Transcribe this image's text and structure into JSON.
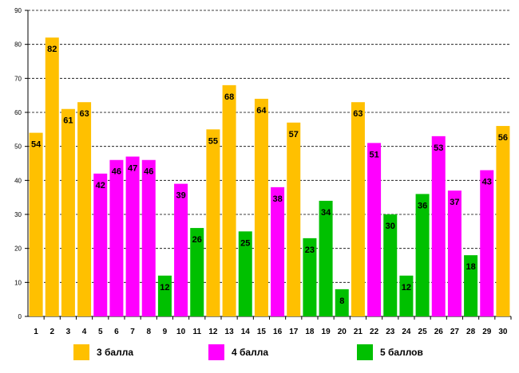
{
  "chart_data": {
    "type": "bar",
    "title": "",
    "xlabel": "",
    "ylabel": "",
    "ylim": [
      0,
      90
    ],
    "yticks": [
      0,
      10,
      20,
      30,
      40,
      50,
      60,
      70,
      80,
      90
    ],
    "grid": "horizontal dashed",
    "categories": [
      "1",
      "2",
      "3",
      "4",
      "5",
      "6",
      "7",
      "8",
      "9",
      "10",
      "11",
      "12",
      "13",
      "14",
      "15",
      "16",
      "17",
      "18",
      "19",
      "20",
      "21",
      "22",
      "23",
      "24",
      "25",
      "26",
      "27",
      "28",
      "29",
      "30"
    ],
    "values": [
      54,
      82,
      61,
      63,
      42,
      46,
      47,
      46,
      12,
      39,
      26,
      55,
      68,
      25,
      64,
      38,
      57,
      23,
      34,
      8,
      63,
      51,
      30,
      12,
      36,
      53,
      37,
      18,
      43,
      56
    ],
    "groups": [
      "g3",
      "g3",
      "g3",
      "g3",
      "g4",
      "g4",
      "g4",
      "g4",
      "g5",
      "g4",
      "g5",
      "g3",
      "g3",
      "g5",
      "g3",
      "g4",
      "g3",
      "g5",
      "g5",
      "g5",
      "g3",
      "g4",
      "g5",
      "g5",
      "g5",
      "g4",
      "g4",
      "g5",
      "g4",
      "g3"
    ],
    "legend": [
      {
        "key": "g3",
        "label": "3 балла",
        "color": "#FFC000"
      },
      {
        "key": "g4",
        "label": "4 балла",
        "color": "#FF00FF"
      },
      {
        "key": "g5",
        "label": "5 баллов",
        "color": "#00C000"
      }
    ]
  }
}
